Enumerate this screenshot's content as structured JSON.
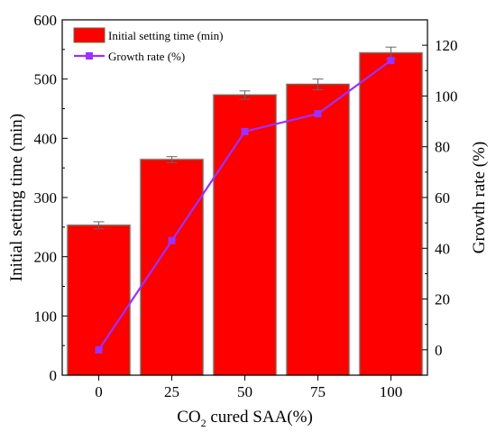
{
  "chart_data": {
    "type": "bar+line",
    "categories": [
      "0",
      "25",
      "50",
      "75",
      "100"
    ],
    "series": [
      {
        "name": "Initial setting time (min)",
        "axis": "left",
        "kind": "bar",
        "values": [
          253,
          364,
          473,
          491,
          544
        ],
        "errors": [
          6,
          5,
          7,
          9,
          10
        ],
        "color": "#ff0000"
      },
      {
        "name": "Growth rate (%)",
        "axis": "right",
        "kind": "line",
        "values": [
          0,
          43,
          86,
          93,
          114
        ],
        "color": "#9b30ff"
      }
    ],
    "xlabel_main": "CO",
    "xlabel_sub": "2",
    "xlabel_rest": " cured SAA(%)",
    "ylabel": "Initial setting time (min)",
    "y2label": "Growth rate (%)",
    "ylim": [
      0,
      600
    ],
    "y2lim": [
      -10,
      130
    ],
    "yticks": [
      "0",
      "100",
      "200",
      "300",
      "400",
      "500",
      "600"
    ],
    "y2ticks": [
      "0",
      "20",
      "40",
      "60",
      "80",
      "100",
      "120"
    ],
    "grid": false,
    "legend_position": "top-left"
  }
}
